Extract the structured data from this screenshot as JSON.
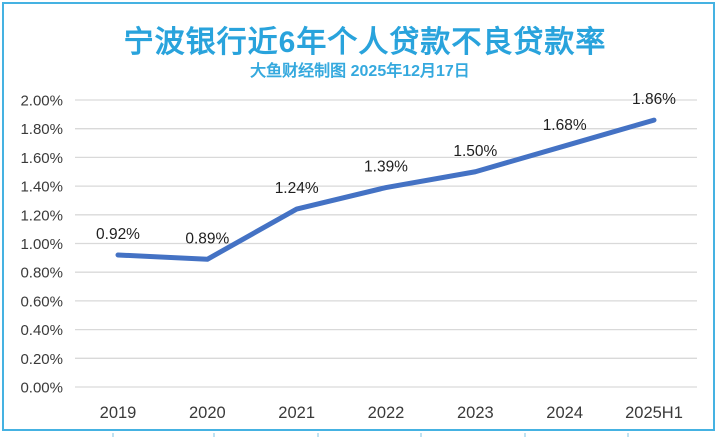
{
  "chart_data": {
    "type": "line",
    "title": "宁波银行近6年个人贷款不良贷款率",
    "subtitle": "大鱼财经制图 2025年12月17日",
    "categories": [
      "2019",
      "2020",
      "2021",
      "2022",
      "2023",
      "2024",
      "2025H1"
    ],
    "series": [
      {
        "name": "个人贷款不良贷款率",
        "values": [
          0.92,
          0.89,
          1.24,
          1.39,
          1.5,
          1.68,
          1.86
        ]
      }
    ],
    "data_labels": [
      "0.92%",
      "0.89%",
      "1.24%",
      "1.39%",
      "1.50%",
      "1.68%",
      "1.86%"
    ],
    "y_tick_labels": [
      "0.00%",
      "0.20%",
      "0.40%",
      "0.60%",
      "0.80%",
      "1.00%",
      "1.20%",
      "1.40%",
      "1.60%",
      "1.80%",
      "2.00%"
    ],
    "ylim": [
      0,
      2
    ],
    "y_step": 0.2,
    "grid": true,
    "legend": false,
    "xlabel": "",
    "ylabel": "",
    "colors": {
      "line": "#4472C4",
      "gridline": "#D9D9D9",
      "title": "#29A3DC",
      "subtitle": "#35A9DE",
      "axis_text": "#3A3A3A",
      "data_label": "#1F1F1F",
      "border": "#45B2E2"
    }
  }
}
